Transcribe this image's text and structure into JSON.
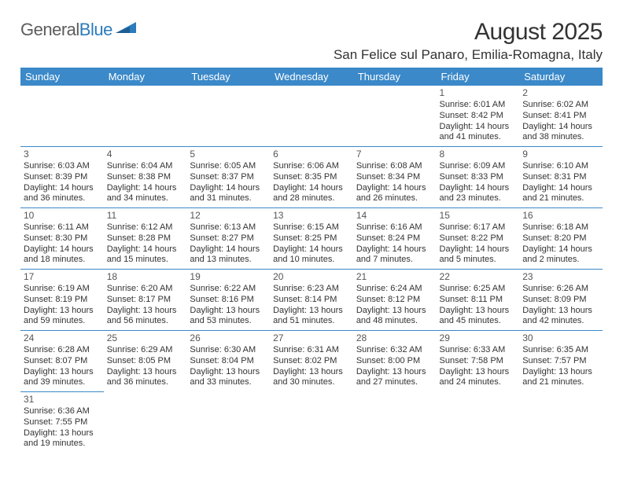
{
  "logo": {
    "text1": "General",
    "text2": "Blue"
  },
  "title": "August 2025",
  "location": "San Felice sul Panaro, Emilia-Romagna, Italy",
  "header_bg": "#3b89c9",
  "header_fg": "#ffffff",
  "border_color": "#3b89c9",
  "columns": [
    "Sunday",
    "Monday",
    "Tuesday",
    "Wednesday",
    "Thursday",
    "Friday",
    "Saturday"
  ],
  "weeks": [
    [
      null,
      null,
      null,
      null,
      null,
      {
        "day": "1",
        "sunrise": "Sunrise: 6:01 AM",
        "sunset": "Sunset: 8:42 PM",
        "daylight": "Daylight: 14 hours and 41 minutes."
      },
      {
        "day": "2",
        "sunrise": "Sunrise: 6:02 AM",
        "sunset": "Sunset: 8:41 PM",
        "daylight": "Daylight: 14 hours and 38 minutes."
      }
    ],
    [
      {
        "day": "3",
        "sunrise": "Sunrise: 6:03 AM",
        "sunset": "Sunset: 8:39 PM",
        "daylight": "Daylight: 14 hours and 36 minutes."
      },
      {
        "day": "4",
        "sunrise": "Sunrise: 6:04 AM",
        "sunset": "Sunset: 8:38 PM",
        "daylight": "Daylight: 14 hours and 34 minutes."
      },
      {
        "day": "5",
        "sunrise": "Sunrise: 6:05 AM",
        "sunset": "Sunset: 8:37 PM",
        "daylight": "Daylight: 14 hours and 31 minutes."
      },
      {
        "day": "6",
        "sunrise": "Sunrise: 6:06 AM",
        "sunset": "Sunset: 8:35 PM",
        "daylight": "Daylight: 14 hours and 28 minutes."
      },
      {
        "day": "7",
        "sunrise": "Sunrise: 6:08 AM",
        "sunset": "Sunset: 8:34 PM",
        "daylight": "Daylight: 14 hours and 26 minutes."
      },
      {
        "day": "8",
        "sunrise": "Sunrise: 6:09 AM",
        "sunset": "Sunset: 8:33 PM",
        "daylight": "Daylight: 14 hours and 23 minutes."
      },
      {
        "day": "9",
        "sunrise": "Sunrise: 6:10 AM",
        "sunset": "Sunset: 8:31 PM",
        "daylight": "Daylight: 14 hours and 21 minutes."
      }
    ],
    [
      {
        "day": "10",
        "sunrise": "Sunrise: 6:11 AM",
        "sunset": "Sunset: 8:30 PM",
        "daylight": "Daylight: 14 hours and 18 minutes."
      },
      {
        "day": "11",
        "sunrise": "Sunrise: 6:12 AM",
        "sunset": "Sunset: 8:28 PM",
        "daylight": "Daylight: 14 hours and 15 minutes."
      },
      {
        "day": "12",
        "sunrise": "Sunrise: 6:13 AM",
        "sunset": "Sunset: 8:27 PM",
        "daylight": "Daylight: 14 hours and 13 minutes."
      },
      {
        "day": "13",
        "sunrise": "Sunrise: 6:15 AM",
        "sunset": "Sunset: 8:25 PM",
        "daylight": "Daylight: 14 hours and 10 minutes."
      },
      {
        "day": "14",
        "sunrise": "Sunrise: 6:16 AM",
        "sunset": "Sunset: 8:24 PM",
        "daylight": "Daylight: 14 hours and 7 minutes."
      },
      {
        "day": "15",
        "sunrise": "Sunrise: 6:17 AM",
        "sunset": "Sunset: 8:22 PM",
        "daylight": "Daylight: 14 hours and 5 minutes."
      },
      {
        "day": "16",
        "sunrise": "Sunrise: 6:18 AM",
        "sunset": "Sunset: 8:20 PM",
        "daylight": "Daylight: 14 hours and 2 minutes."
      }
    ],
    [
      {
        "day": "17",
        "sunrise": "Sunrise: 6:19 AM",
        "sunset": "Sunset: 8:19 PM",
        "daylight": "Daylight: 13 hours and 59 minutes."
      },
      {
        "day": "18",
        "sunrise": "Sunrise: 6:20 AM",
        "sunset": "Sunset: 8:17 PM",
        "daylight": "Daylight: 13 hours and 56 minutes."
      },
      {
        "day": "19",
        "sunrise": "Sunrise: 6:22 AM",
        "sunset": "Sunset: 8:16 PM",
        "daylight": "Daylight: 13 hours and 53 minutes."
      },
      {
        "day": "20",
        "sunrise": "Sunrise: 6:23 AM",
        "sunset": "Sunset: 8:14 PM",
        "daylight": "Daylight: 13 hours and 51 minutes."
      },
      {
        "day": "21",
        "sunrise": "Sunrise: 6:24 AM",
        "sunset": "Sunset: 8:12 PM",
        "daylight": "Daylight: 13 hours and 48 minutes."
      },
      {
        "day": "22",
        "sunrise": "Sunrise: 6:25 AM",
        "sunset": "Sunset: 8:11 PM",
        "daylight": "Daylight: 13 hours and 45 minutes."
      },
      {
        "day": "23",
        "sunrise": "Sunrise: 6:26 AM",
        "sunset": "Sunset: 8:09 PM",
        "daylight": "Daylight: 13 hours and 42 minutes."
      }
    ],
    [
      {
        "day": "24",
        "sunrise": "Sunrise: 6:28 AM",
        "sunset": "Sunset: 8:07 PM",
        "daylight": "Daylight: 13 hours and 39 minutes."
      },
      {
        "day": "25",
        "sunrise": "Sunrise: 6:29 AM",
        "sunset": "Sunset: 8:05 PM",
        "daylight": "Daylight: 13 hours and 36 minutes."
      },
      {
        "day": "26",
        "sunrise": "Sunrise: 6:30 AM",
        "sunset": "Sunset: 8:04 PM",
        "daylight": "Daylight: 13 hours and 33 minutes."
      },
      {
        "day": "27",
        "sunrise": "Sunrise: 6:31 AM",
        "sunset": "Sunset: 8:02 PM",
        "daylight": "Daylight: 13 hours and 30 minutes."
      },
      {
        "day": "28",
        "sunrise": "Sunrise: 6:32 AM",
        "sunset": "Sunset: 8:00 PM",
        "daylight": "Daylight: 13 hours and 27 minutes."
      },
      {
        "day": "29",
        "sunrise": "Sunrise: 6:33 AM",
        "sunset": "Sunset: 7:58 PM",
        "daylight": "Daylight: 13 hours and 24 minutes."
      },
      {
        "day": "30",
        "sunrise": "Sunrise: 6:35 AM",
        "sunset": "Sunset: 7:57 PM",
        "daylight": "Daylight: 13 hours and 21 minutes."
      }
    ],
    [
      {
        "day": "31",
        "sunrise": "Sunrise: 6:36 AM",
        "sunset": "Sunset: 7:55 PM",
        "daylight": "Daylight: 13 hours and 19 minutes."
      },
      null,
      null,
      null,
      null,
      null,
      null
    ]
  ]
}
